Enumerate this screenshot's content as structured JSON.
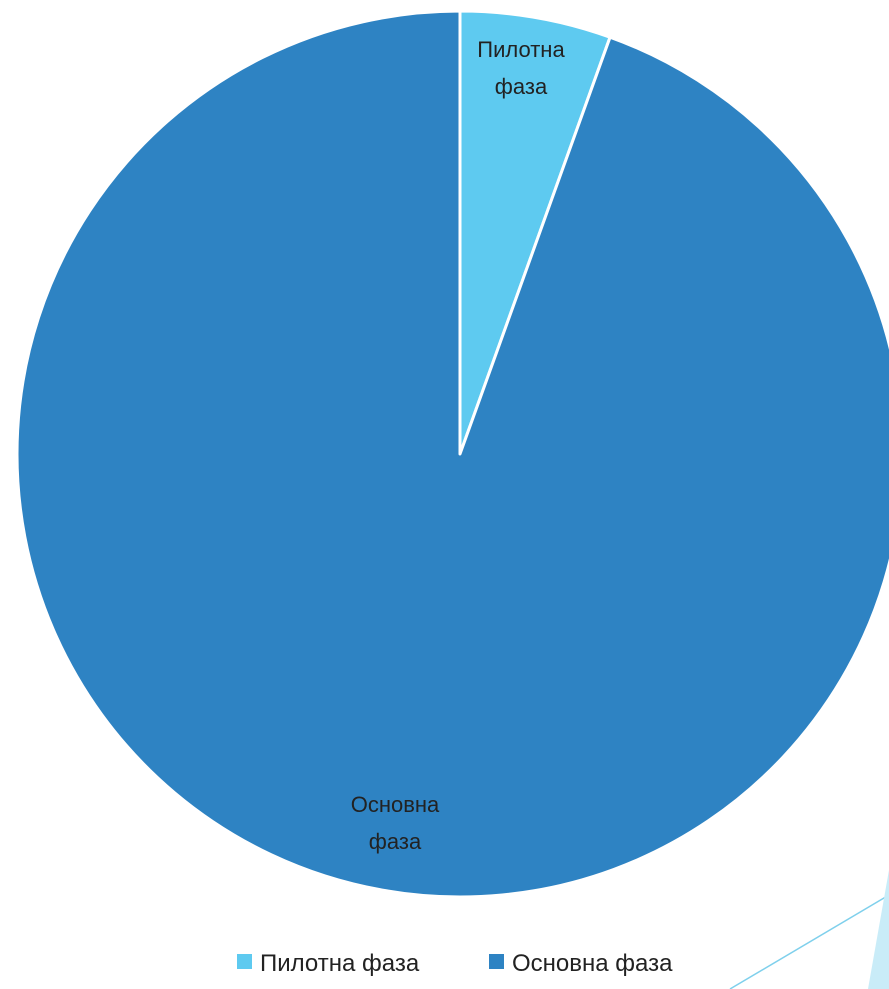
{
  "chart_data": {
    "type": "pie",
    "title": "",
    "start_angle_deg": 0,
    "direction": "clockwise",
    "series": [
      {
        "values": [
          5.5,
          94.5
        ],
        "categories": [
          "Пилотна фаза",
          "Основна фаза"
        ],
        "colors": [
          "#5ecaf0",
          "#2e83c3"
        ]
      }
    ],
    "slice_labels": [
      [
        "Пилотна",
        "фаза"
      ],
      [
        "Основна",
        "фаза"
      ]
    ],
    "legend": {
      "position": "bottom",
      "entries": [
        {
          "label": "Пилотна фаза",
          "color": "#5ecaf0"
        },
        {
          "label": "Основна фаза",
          "color": "#2e83c3"
        }
      ]
    }
  },
  "decoration": {
    "line_color": "#7fd0ec",
    "fill_color": "#c9ecf8"
  }
}
